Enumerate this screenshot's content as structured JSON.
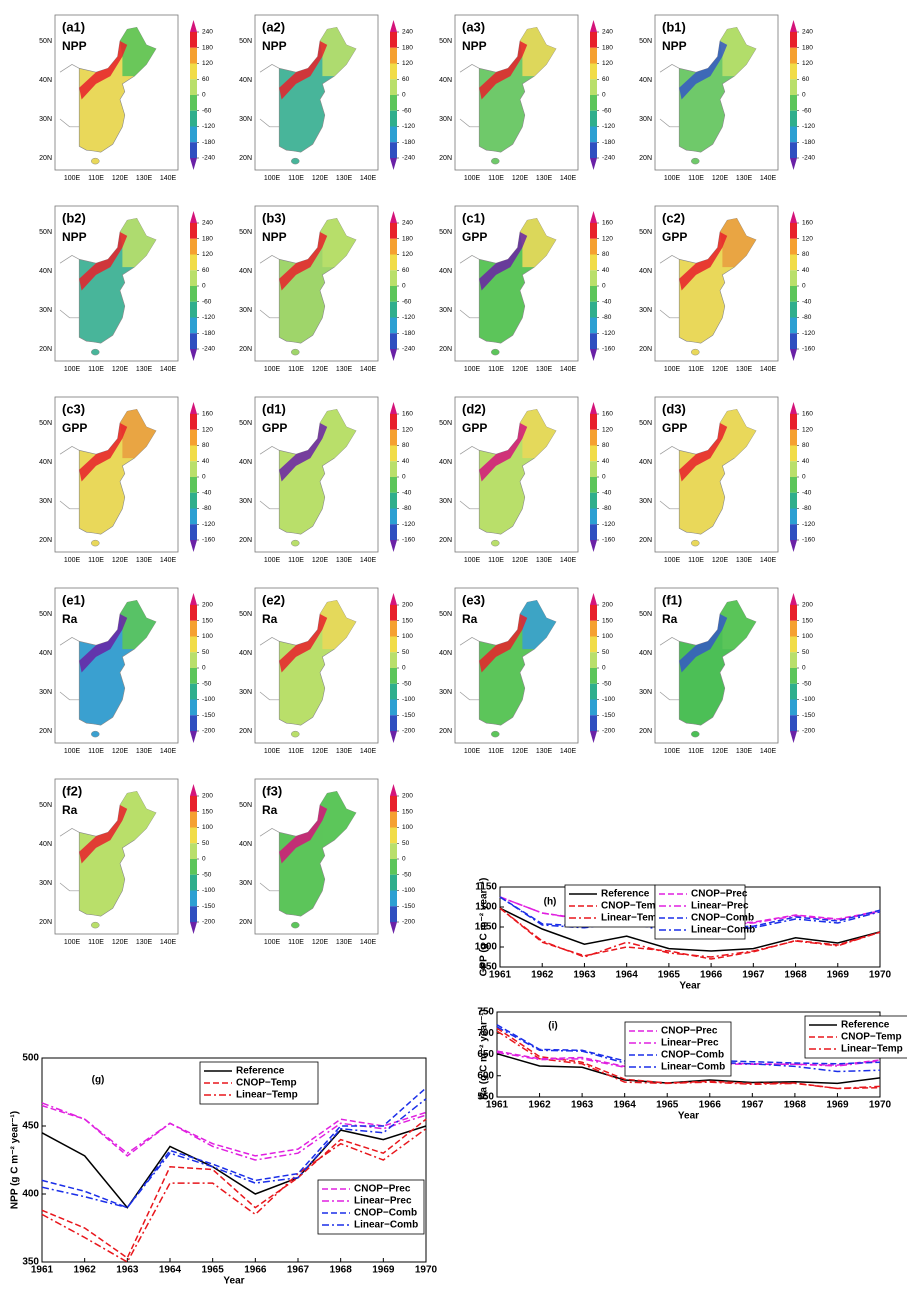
{
  "map_axes": {
    "lat_labels": [
      "50N",
      "40N",
      "30N",
      "20N"
    ],
    "lon_labels": [
      "100E",
      "110E",
      "120E",
      "130E",
      "140E"
    ]
  },
  "chart_data": [
    {
      "type": "map",
      "panel": "(a1)",
      "title": "NPP",
      "colorbar_ticks": [
        240,
        180,
        120,
        60,
        0,
        -60,
        -120,
        -180,
        -240
      ]
    },
    {
      "type": "map",
      "panel": "(a2)",
      "title": "NPP",
      "colorbar_ticks": [
        240,
        180,
        120,
        60,
        0,
        -60,
        -120,
        -180,
        -240
      ]
    },
    {
      "type": "map",
      "panel": "(a3)",
      "title": "NPP",
      "colorbar_ticks": [
        240,
        180,
        120,
        60,
        0,
        -60,
        -120,
        -180,
        -240
      ]
    },
    {
      "type": "map",
      "panel": "(b1)",
      "title": "NPP",
      "colorbar_ticks": [
        240,
        180,
        120,
        60,
        0,
        -60,
        -120,
        -180,
        -240
      ]
    },
    {
      "type": "map",
      "panel": "(b2)",
      "title": "NPP",
      "colorbar_ticks": [
        240,
        180,
        120,
        60,
        0,
        -60,
        -120,
        -180,
        -240
      ]
    },
    {
      "type": "map",
      "panel": "(b3)",
      "title": "NPP",
      "colorbar_ticks": [
        240,
        180,
        120,
        60,
        0,
        -60,
        -120,
        -180,
        -240
      ]
    },
    {
      "type": "map",
      "panel": "(c1)",
      "title": "GPP",
      "colorbar_ticks": [
        160,
        120,
        80,
        40,
        0,
        -40,
        -80,
        -120,
        -160
      ]
    },
    {
      "type": "map",
      "panel": "(c2)",
      "title": "GPP",
      "colorbar_ticks": [
        160,
        120,
        80,
        40,
        0,
        -40,
        -80,
        -120,
        -160
      ]
    },
    {
      "type": "map",
      "panel": "(c3)",
      "title": "GPP",
      "colorbar_ticks": [
        160,
        120,
        80,
        40,
        0,
        -40,
        -80,
        -120,
        -160
      ]
    },
    {
      "type": "map",
      "panel": "(d1)",
      "title": "GPP",
      "colorbar_ticks": [
        160,
        120,
        80,
        40,
        0,
        -40,
        -80,
        -120,
        -160
      ]
    },
    {
      "type": "map",
      "panel": "(d2)",
      "title": "GPP",
      "colorbar_ticks": [
        160,
        120,
        80,
        40,
        0,
        -40,
        -80,
        -120,
        -160
      ]
    },
    {
      "type": "map",
      "panel": "(d3)",
      "title": "GPP",
      "colorbar_ticks": [
        160,
        120,
        80,
        40,
        0,
        -40,
        -80,
        -120,
        -160
      ]
    },
    {
      "type": "map",
      "panel": "(e1)",
      "title": "Ra",
      "colorbar_ticks": [
        200,
        150,
        100,
        50,
        0,
        -50,
        -100,
        -150,
        -200
      ]
    },
    {
      "type": "map",
      "panel": "(e2)",
      "title": "Ra",
      "colorbar_ticks": [
        200,
        150,
        100,
        50,
        0,
        -50,
        -100,
        -150,
        -200
      ]
    },
    {
      "type": "map",
      "panel": "(e3)",
      "title": "Ra",
      "colorbar_ticks": [
        200,
        150,
        100,
        50,
        0,
        -50,
        -100,
        -150,
        -200
      ]
    },
    {
      "type": "map",
      "panel": "(f1)",
      "title": "Ra",
      "colorbar_ticks": [
        200,
        150,
        100,
        50,
        0,
        -50,
        -100,
        -150,
        -200
      ]
    },
    {
      "type": "map",
      "panel": "(f2)",
      "title": "Ra",
      "colorbar_ticks": [
        200,
        150,
        100,
        50,
        0,
        -50,
        -100,
        -150,
        -200
      ]
    },
    {
      "type": "map",
      "panel": "(f3)",
      "title": "Ra",
      "colorbar_ticks": [
        200,
        150,
        100,
        50,
        0,
        -50,
        -100,
        -150,
        -200
      ]
    },
    {
      "type": "line",
      "title": "(g)",
      "xlabel": "Year",
      "ylabel": "NPP (g C m⁻² year⁻¹)",
      "x": [
        1961,
        1962,
        1963,
        1964,
        1965,
        1966,
        1967,
        1968,
        1969,
        1970
      ],
      "xlim": [
        1961,
        1970
      ],
      "xticks": [
        1961,
        1962,
        1963,
        1964,
        1965,
        1966,
        1967,
        1968,
        1969,
        1970
      ],
      "ylim": [
        350,
        500
      ],
      "yticks": [
        350,
        400,
        450,
        500
      ],
      "series": [
        {
          "name": "Reference",
          "color": "#000000",
          "linestyle": "solid",
          "values": [
            445,
            428,
            390,
            435,
            420,
            400,
            412,
            447,
            440,
            450
          ]
        },
        {
          "name": "CNOP−Temp",
          "color": "#e8161c",
          "linestyle": "dashed",
          "values": [
            388,
            375,
            353,
            420,
            418,
            390,
            412,
            440,
            430,
            455
          ]
        },
        {
          "name": "Linear−Temp",
          "color": "#e8161c",
          "linestyle": "dashdot",
          "values": [
            385,
            368,
            350,
            408,
            408,
            385,
            415,
            437,
            425,
            448
          ]
        },
        {
          "name": "CNOP−Prec",
          "color": "#e020e0",
          "linestyle": "dashed",
          "values": [
            465,
            455,
            428,
            452,
            437,
            428,
            433,
            455,
            450,
            460
          ]
        },
        {
          "name": "Linear−Prec",
          "color": "#e020e0",
          "linestyle": "dashdot",
          "values": [
            467,
            455,
            430,
            452,
            435,
            425,
            430,
            452,
            448,
            458
          ]
        },
        {
          "name": "CNOP−Comb",
          "color": "#1a2ee8",
          "linestyle": "dashed",
          "values": [
            410,
            402,
            390,
            432,
            422,
            410,
            415,
            450,
            450,
            478
          ]
        },
        {
          "name": "Linear−Comb",
          "color": "#1a2ee8",
          "linestyle": "dashdot",
          "values": [
            405,
            398,
            390,
            430,
            420,
            408,
            412,
            448,
            445,
            470
          ]
        }
      ]
    },
    {
      "type": "line",
      "title": "(h)",
      "xlabel": "Year",
      "ylabel": "GPP (g C m⁻² year⁻¹)",
      "x": [
        1961,
        1962,
        1963,
        1964,
        1965,
        1966,
        1967,
        1968,
        1969,
        1970
      ],
      "xlim": [
        1961,
        1970
      ],
      "xticks": [
        1961,
        1962,
        1963,
        1964,
        1965,
        1966,
        1967,
        1968,
        1969,
        1970
      ],
      "ylim": [
        950,
        1150
      ],
      "yticks": [
        950,
        1000,
        1050,
        1100,
        1150
      ],
      "series": [
        {
          "name": "Reference",
          "color": "#000000",
          "linestyle": "solid",
          "values": [
            1097,
            1045,
            1007,
            1027,
            996,
            990,
            996,
            1023,
            1010,
            1038
          ]
        },
        {
          "name": "CNOP−Temp",
          "color": "#e8161c",
          "linestyle": "dashed",
          "values": [
            1097,
            1012,
            978,
            1000,
            990,
            970,
            988,
            1016,
            1005,
            1037
          ]
        },
        {
          "name": "Linear−Temp",
          "color": "#e8161c",
          "linestyle": "dashdot",
          "values": [
            1097,
            1015,
            975,
            1012,
            985,
            975,
            990,
            1015,
            1003,
            1037
          ]
        },
        {
          "name": "CNOP−Prec",
          "color": "#e020e0",
          "linestyle": "dashed",
          "values": [
            1125,
            1085,
            1070,
            1078,
            1050,
            1058,
            1062,
            1080,
            1070,
            1090
          ]
        },
        {
          "name": "Linear−Prec",
          "color": "#e020e0",
          "linestyle": "dashdot",
          "values": [
            1125,
            1085,
            1068,
            1075,
            1045,
            1056,
            1060,
            1078,
            1068,
            1088
          ]
        },
        {
          "name": "CNOP−Comb",
          "color": "#1a2ee8",
          "linestyle": "dashed",
          "values": [
            1125,
            1058,
            1052,
            1068,
            1042,
            1048,
            1052,
            1075,
            1065,
            1092
          ]
        },
        {
          "name": "Linear−Comb",
          "color": "#1a2ee8",
          "linestyle": "dashdot",
          "values": [
            1125,
            1055,
            1048,
            1062,
            1038,
            1042,
            1048,
            1070,
            1060,
            1088
          ]
        }
      ]
    },
    {
      "type": "line",
      "title": "(i)",
      "xlabel": "Year",
      "ylabel": "Ra (g C m⁻² year⁻¹)",
      "x": [
        1961,
        1962,
        1963,
        1964,
        1965,
        1966,
        1967,
        1968,
        1969,
        1970
      ],
      "xlim": [
        1961,
        1970
      ],
      "xticks": [
        1961,
        1962,
        1963,
        1964,
        1965,
        1966,
        1967,
        1968,
        1969,
        1970
      ],
      "ylim": [
        550,
        750
      ],
      "yticks": [
        550,
        600,
        650,
        700,
        750
      ],
      "series": [
        {
          "name": "Reference",
          "color": "#000000",
          "linestyle": "solid",
          "values": [
            652,
            623,
            620,
            590,
            583,
            590,
            584,
            586,
            582,
            595
          ]
        },
        {
          "name": "CNOP−Temp",
          "color": "#e8161c",
          "linestyle": "dashed",
          "values": [
            712,
            645,
            632,
            592,
            583,
            587,
            582,
            583,
            570,
            572
          ]
        },
        {
          "name": "Linear−Temp",
          "color": "#e8161c",
          "linestyle": "dashdot",
          "values": [
            705,
            640,
            628,
            585,
            582,
            585,
            580,
            582,
            570,
            575
          ]
        },
        {
          "name": "CNOP−Prec",
          "color": "#e020e0",
          "linestyle": "dashed",
          "values": [
            658,
            640,
            643,
            622,
            616,
            630,
            628,
            627,
            625,
            637
          ]
        },
        {
          "name": "Linear−Prec",
          "color": "#e020e0",
          "linestyle": "dashdot",
          "values": [
            655,
            638,
            640,
            620,
            614,
            628,
            627,
            627,
            623,
            635
          ]
        },
        {
          "name": "CNOP−Comb",
          "color": "#1a2ee8",
          "linestyle": "dashed",
          "values": [
            720,
            662,
            660,
            635,
            622,
            636,
            633,
            630,
            628,
            632
          ]
        },
        {
          "name": "Linear−Comb",
          "color": "#1a2ee8",
          "linestyle": "dashdot",
          "values": [
            715,
            660,
            658,
            630,
            620,
            632,
            628,
            622,
            610,
            613
          ]
        }
      ]
    }
  ]
}
